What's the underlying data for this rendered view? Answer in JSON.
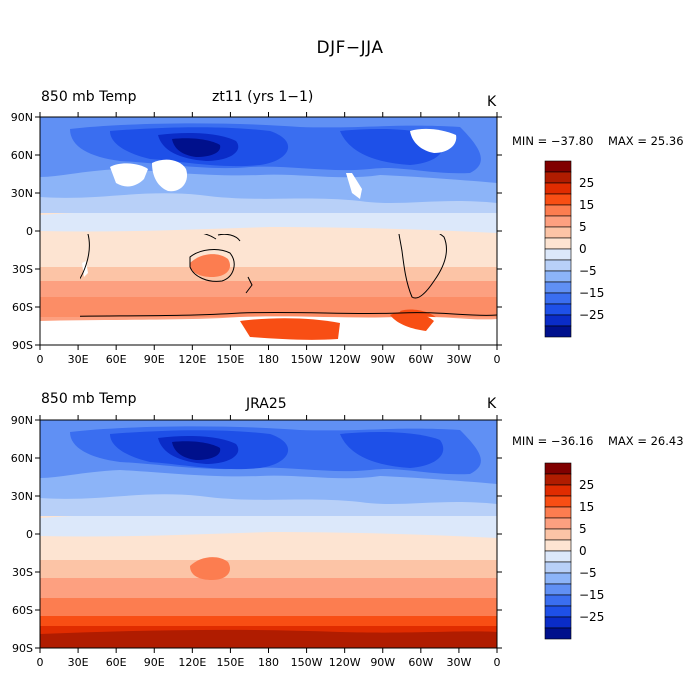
{
  "figure": {
    "title": "DJF−JJA"
  },
  "panels": [
    {
      "variable": "850 mb Temp",
      "dataset": "zt11 (yrs 1−1)",
      "units": "K",
      "min_label": "MIN = −37.80",
      "max_label": "MAX =  25.36"
    },
    {
      "variable": "850 mb Temp",
      "dataset": "JRA25",
      "units": "K",
      "min_label": "MIN = −36.16",
      "max_label": "MAX =  26.43"
    }
  ],
  "axes": {
    "lon_labels": [
      "0",
      "30E",
      "60E",
      "90E",
      "120E",
      "150E",
      "180",
      "150W",
      "120W",
      "90W",
      "60W",
      "30W",
      "0"
    ],
    "lat_labels": [
      "90N",
      "60N",
      "30N",
      "0",
      "30S",
      "60S",
      "90S"
    ]
  },
  "colorbar": {
    "labels": [
      "25",
      "15",
      "5",
      "0",
      "−5",
      "−15",
      "−25"
    ],
    "colors": [
      "#800000",
      "#b01c00",
      "#e02c00",
      "#f84e14",
      "#fc7d50",
      "#fda080",
      "#fcc4a6",
      "#fde4d2",
      "#dce8fa",
      "#b8d0f8",
      "#8cb4f8",
      "#6090f4",
      "#3a6ef0",
      "#1e50e8",
      "#0a2cc8",
      "#00108c"
    ]
  }
}
